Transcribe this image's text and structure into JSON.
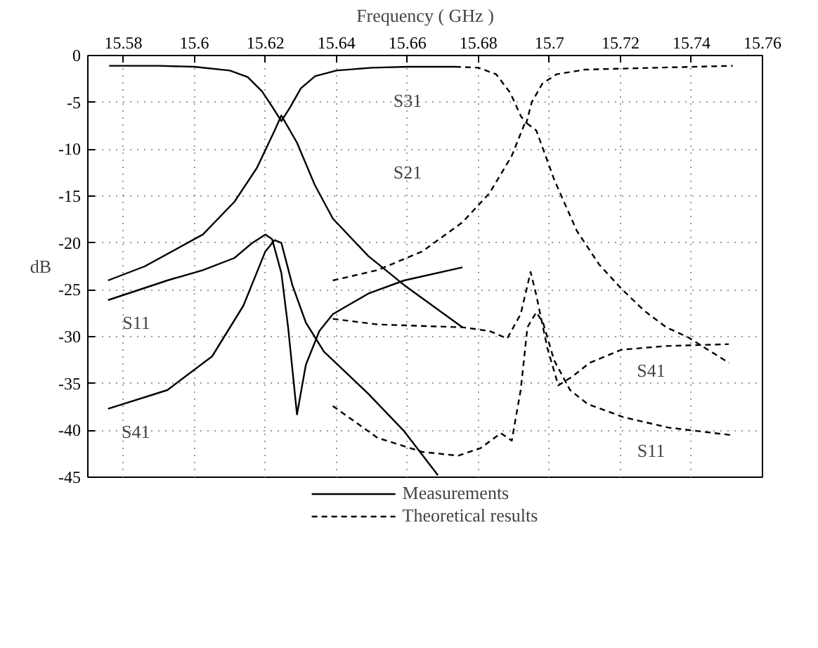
{
  "chart_data": {
    "type": "line",
    "xlabel": "Frequency ( GHz )",
    "ylabel": "dB",
    "xlim": [
      15.57,
      15.76
    ],
    "xticks": [
      15.58,
      15.6,
      15.62,
      15.64,
      15.66,
      15.68,
      15.7,
      15.72,
      15.74,
      15.76
    ],
    "ylim": [
      -45,
      0
    ],
    "yticks": [
      0,
      -5,
      -10,
      -15,
      -20,
      -25,
      -30,
      -35,
      -40,
      -45
    ],
    "grid": true,
    "legend": "bottom",
    "marker": "none",
    "series": [
      {
        "name": "Measurements",
        "color": "#000000",
        "line_style": "solid",
        "x": [
          15.576,
          15.59,
          15.6,
          15.61,
          15.615,
          15.619,
          15.622,
          15.6245,
          15.627,
          15.63,
          15.634,
          15.64,
          15.65,
          15.66,
          15.6735
        ],
        "values": [
          -1.1,
          -1.1,
          -1.2,
          -1.6,
          -2.3,
          -3.8,
          -5.5,
          -7.0,
          -5.5,
          -3.5,
          -2.2,
          -1.6,
          -1.3,
          -1.2,
          -1.2
        ]
      },
      {
        "color": "#000000",
        "line_style": "solid",
        "x": [
          15.5757,
          15.586,
          15.6024,
          15.6113,
          15.6176,
          15.6226,
          15.6245,
          15.6289,
          15.6339,
          15.639,
          15.649,
          15.6591,
          15.6755
        ],
        "values": [
          -24.0,
          -22.5,
          -19.1,
          -15.6,
          -12.0,
          -8.0,
          -6.4,
          -9.3,
          -13.8,
          -17.4,
          -21.4,
          -24.5,
          -29.0
        ]
      },
      {
        "color": "#000000",
        "line_style": "solid",
        "x": [
          15.5757,
          15.5924,
          15.6024,
          15.6113,
          15.6163,
          15.62,
          15.6219,
          15.6245,
          15.6264,
          15.6289,
          15.6314,
          15.6352,
          15.639,
          15.649,
          15.6591,
          15.6755
        ],
        "values": [
          -26.1,
          -24.0,
          -22.9,
          -21.6,
          -20.0,
          -19.1,
          -19.6,
          -23.2,
          -29.0,
          -38.3,
          -33.0,
          -29.4,
          -27.6,
          -25.4,
          -24.0,
          -22.6
        ]
      },
      {
        "color": "#000000",
        "line_style": "solid",
        "x": [
          15.5757,
          15.5924,
          15.605,
          15.6138,
          15.62,
          15.6226,
          15.6245,
          15.6276,
          15.6314,
          15.6365,
          15.649,
          15.6591,
          15.6686
        ],
        "values": [
          -37.7,
          -35.7,
          -32.1,
          -26.7,
          -20.9,
          -19.7,
          -20.0,
          -24.5,
          -28.5,
          -31.6,
          -36.1,
          -40.1,
          -44.8
        ]
      },
      {
        "name": "Theoretical results",
        "color": "#000000",
        "line_style": "dashed",
        "x": [
          15.6735,
          15.68,
          15.685,
          15.689,
          15.692,
          15.6935,
          15.695,
          15.698,
          15.702,
          15.71,
          15.73,
          15.7516
        ],
        "values": [
          -1.2,
          -1.3,
          -2.0,
          -4.0,
          -6.5,
          -7.2,
          -5.0,
          -3.0,
          -2.0,
          -1.5,
          -1.3,
          -1.1
        ]
      },
      {
        "color": "#000000",
        "line_style": "dashed",
        "x": [
          15.639,
          15.6516,
          15.6642,
          15.6755,
          15.6831,
          15.6894,
          15.6932,
          15.6963,
          15.7014,
          15.7077,
          15.714,
          15.7203,
          15.7266,
          15.7329,
          15.7392,
          15.7455,
          15.7506
        ],
        "values": [
          -24.0,
          -22.9,
          -20.9,
          -17.8,
          -14.7,
          -10.7,
          -7.1,
          -8.0,
          -13.3,
          -18.7,
          -22.3,
          -24.9,
          -27.2,
          -29.0,
          -30.1,
          -31.6,
          -32.8
        ]
      },
      {
        "color": "#000000",
        "line_style": "dashed",
        "x": [
          15.639,
          15.6516,
          15.6755,
          15.6831,
          15.6881,
          15.6919,
          15.6947,
          15.6962,
          15.6994,
          15.7025,
          15.7063,
          15.7113,
          15.7202,
          15.7328,
          15.7505
        ],
        "values": [
          -28.1,
          -28.7,
          -29.0,
          -29.4,
          -30.2,
          -27.6,
          -23.1,
          -25.4,
          -31.2,
          -35.2,
          -34.3,
          -32.8,
          -31.4,
          -31.0,
          -30.8
        ]
      },
      {
        "color": "#000000",
        "line_style": "dashed",
        "x": [
          15.639,
          15.6516,
          15.6642,
          15.6743,
          15.6806,
          15.6863,
          15.6894,
          15.6919,
          15.6938,
          15.6963,
          15.6982,
          15.7013,
          15.7058,
          15.7108,
          15.7209,
          15.7335,
          15.7511
        ],
        "values": [
          -37.4,
          -40.8,
          -42.3,
          -42.7,
          -41.9,
          -40.3,
          -41.1,
          -35.7,
          -29.0,
          -27.4,
          -28.5,
          -32.5,
          -35.7,
          -37.2,
          -38.6,
          -39.7,
          -40.5
        ]
      }
    ],
    "annotations": [
      "S31",
      "S21",
      "S11",
      "S41",
      "S41",
      "S11"
    ]
  }
}
